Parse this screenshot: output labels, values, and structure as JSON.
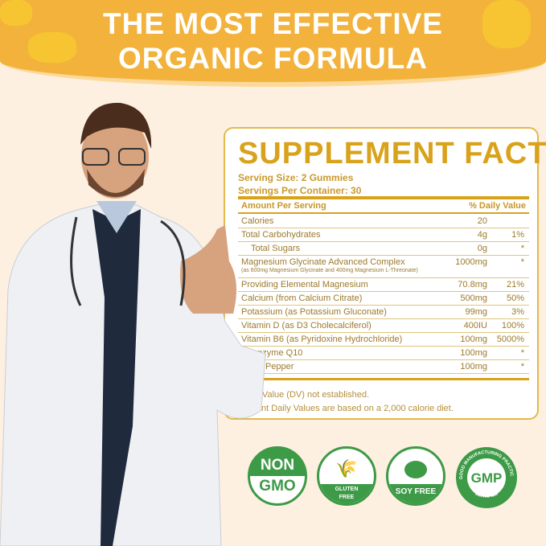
{
  "header": {
    "line1": "THE MOST EFFECTIVE",
    "line2": "ORGANIC FORMULA"
  },
  "facts": {
    "title": "SUPPLEMENT FACTS",
    "serving_size": "Serving Size: 2 Gummies",
    "servings_per_container": "Servings Per Container: 30",
    "col_amount": "Amount Per Serving",
    "col_dv": "% Daily Value",
    "rows": [
      {
        "name": "Calories",
        "amount": "20",
        "dv": ""
      },
      {
        "name": "Total Carbohydrates",
        "amount": "4g",
        "dv": "1%"
      },
      {
        "name": "Total Sugars",
        "amount": "0g",
        "dv": "*"
      },
      {
        "name": "Magnesium Glycinate Advanced Complex",
        "sub": "(as 600mg Magnesium Glycinate and 400mg Magnesium L-Threonate)",
        "amount": "1000mg",
        "dv": "*"
      },
      {
        "name": "Providing Elemental Magnesium",
        "amount": "70.8mg",
        "dv": "21%"
      },
      {
        "name": "Calcium (from Calcium Citrate)",
        "amount": "500mg",
        "dv": "50%"
      },
      {
        "name": "Potassium (as Potassium Gluconate)",
        "amount": "99mg",
        "dv": "3%"
      },
      {
        "name": "Vitamin D (as D3 Cholecalciferol)",
        "amount": "400IU",
        "dv": "100%"
      },
      {
        "name": "Vitamin B6 (as Pyridoxine Hydrochloride)",
        "amount": "100mg",
        "dv": "5000%"
      },
      {
        "name": "Coenzyme Q10",
        "amount": "100mg",
        "dv": "*"
      },
      {
        "name": "Black Pepper",
        "amount": "100mg",
        "dv": "*"
      }
    ],
    "footnote1": "+Daily Value (DV) not established.",
    "footnote2": "*Percent Daily Values are based on a 2,000 calorie diet."
  },
  "badges": {
    "non_gmo": {
      "top": "NON",
      "bottom": "GMO"
    },
    "gluten_free": {
      "line1": "GLUTEN",
      "line2": "FREE"
    },
    "soy_free": {
      "label": "SOY FREE"
    },
    "gmp": {
      "center": "GMP",
      "ring_top": "GOOD MANUFACTURING PRACTICE",
      "ring_bottom": "CERTIFIED"
    }
  },
  "colors": {
    "banner": "#f2b23c",
    "gold": "#d9a21b",
    "green": "#3d9a46",
    "background": "#fdf0e1"
  }
}
